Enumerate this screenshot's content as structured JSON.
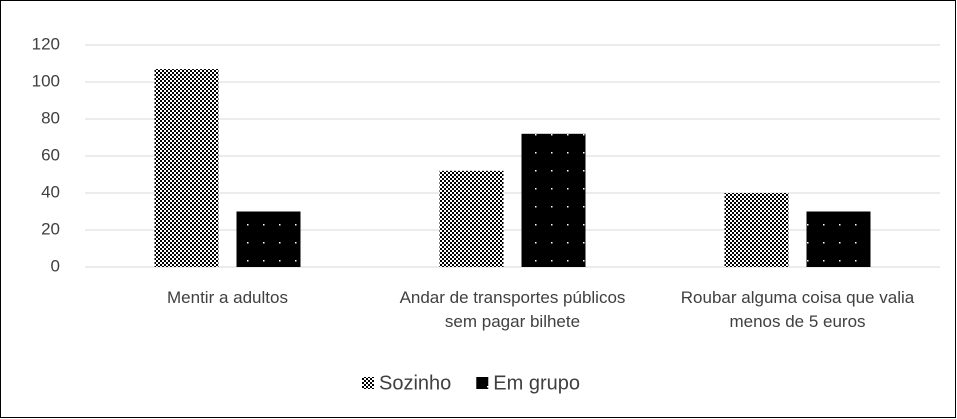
{
  "chart_data": {
    "type": "bar",
    "categories": [
      "Mentir a adultos",
      "Andar de transportes públicos sem pagar bilhete",
      "Roubar alguma coisa que valia menos de 5 euros"
    ],
    "series": [
      {
        "name": "Sozinho",
        "color": "#000000",
        "pattern": "checker",
        "values": [
          107,
          52,
          40
        ]
      },
      {
        "name": "Em grupo",
        "color": "#000000",
        "pattern": "dots",
        "values": [
          30,
          72,
          30
        ]
      }
    ],
    "ylim": [
      0,
      120
    ],
    "yticks": [
      0,
      20,
      40,
      60,
      80,
      100,
      120
    ],
    "grid": true,
    "legend": "bottom"
  }
}
